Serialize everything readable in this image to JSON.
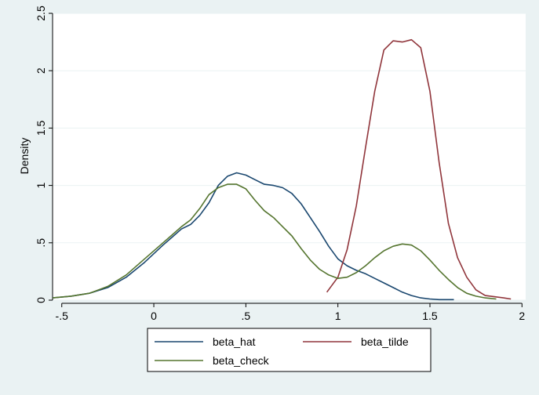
{
  "chart_data": {
    "type": "line",
    "title": "",
    "xlabel": "",
    "ylabel": "Density",
    "xlim": [
      -0.55,
      2.02
    ],
    "ylim": [
      0,
      2.5
    ],
    "x_ticks": [
      -0.5,
      0,
      0.5,
      1,
      1.5,
      2
    ],
    "x_tick_labels": [
      "-.5",
      "0",
      ".5",
      "1",
      "1.5",
      "2"
    ],
    "y_ticks": [
      0,
      0.5,
      1,
      1.5,
      2,
      2.5
    ],
    "y_tick_labels": [
      "0",
      ".5",
      "1",
      "1.5",
      "2",
      "2.5"
    ],
    "grid": true,
    "legend_position": "bottom",
    "series": [
      {
        "name": "beta_hat",
        "color": "#1a476f",
        "points": [
          [
            -0.55,
            0.02
          ],
          [
            -0.45,
            0.035
          ],
          [
            -0.35,
            0.06
          ],
          [
            -0.25,
            0.11
          ],
          [
            -0.15,
            0.2
          ],
          [
            -0.05,
            0.33
          ],
          [
            0.05,
            0.48
          ],
          [
            0.1,
            0.55
          ],
          [
            0.15,
            0.62
          ],
          [
            0.2,
            0.66
          ],
          [
            0.25,
            0.74
          ],
          [
            0.3,
            0.85
          ],
          [
            0.35,
            1.0
          ],
          [
            0.4,
            1.08
          ],
          [
            0.45,
            1.11
          ],
          [
            0.5,
            1.09
          ],
          [
            0.55,
            1.05
          ],
          [
            0.6,
            1.01
          ],
          [
            0.65,
            1.0
          ],
          [
            0.7,
            0.98
          ],
          [
            0.75,
            0.93
          ],
          [
            0.8,
            0.84
          ],
          [
            0.85,
            0.72
          ],
          [
            0.9,
            0.6
          ],
          [
            0.95,
            0.47
          ],
          [
            1.0,
            0.36
          ],
          [
            1.05,
            0.3
          ],
          [
            1.1,
            0.26
          ],
          [
            1.15,
            0.23
          ],
          [
            1.2,
            0.19
          ],
          [
            1.25,
            0.15
          ],
          [
            1.3,
            0.11
          ],
          [
            1.35,
            0.07
          ],
          [
            1.4,
            0.04
          ],
          [
            1.45,
            0.02
          ],
          [
            1.5,
            0.01
          ],
          [
            1.55,
            0.005
          ],
          [
            1.63,
            0.005
          ]
        ]
      },
      {
        "name": "beta_tilde",
        "color": "#90353b",
        "points": [
          [
            0.94,
            0.07
          ],
          [
            1.0,
            0.2
          ],
          [
            1.05,
            0.44
          ],
          [
            1.1,
            0.82
          ],
          [
            1.15,
            1.33
          ],
          [
            1.2,
            1.82
          ],
          [
            1.25,
            2.18
          ],
          [
            1.3,
            2.26
          ],
          [
            1.35,
            2.25
          ],
          [
            1.4,
            2.27
          ],
          [
            1.45,
            2.2
          ],
          [
            1.5,
            1.82
          ],
          [
            1.55,
            1.2
          ],
          [
            1.6,
            0.67
          ],
          [
            1.65,
            0.37
          ],
          [
            1.7,
            0.2
          ],
          [
            1.75,
            0.09
          ],
          [
            1.8,
            0.04
          ],
          [
            1.85,
            0.03
          ],
          [
            1.9,
            0.02
          ],
          [
            1.94,
            0.01
          ]
        ]
      },
      {
        "name": "beta_check",
        "color": "#55752f",
        "points": [
          [
            -0.55,
            0.02
          ],
          [
            -0.45,
            0.035
          ],
          [
            -0.35,
            0.06
          ],
          [
            -0.25,
            0.12
          ],
          [
            -0.15,
            0.22
          ],
          [
            -0.05,
            0.36
          ],
          [
            0.05,
            0.5
          ],
          [
            0.1,
            0.57
          ],
          [
            0.15,
            0.64
          ],
          [
            0.2,
            0.7
          ],
          [
            0.25,
            0.8
          ],
          [
            0.3,
            0.92
          ],
          [
            0.35,
            0.98
          ],
          [
            0.4,
            1.01
          ],
          [
            0.45,
            1.01
          ],
          [
            0.5,
            0.97
          ],
          [
            0.55,
            0.87
          ],
          [
            0.6,
            0.78
          ],
          [
            0.65,
            0.72
          ],
          [
            0.7,
            0.64
          ],
          [
            0.75,
            0.56
          ],
          [
            0.8,
            0.45
          ],
          [
            0.85,
            0.35
          ],
          [
            0.9,
            0.27
          ],
          [
            0.95,
            0.22
          ],
          [
            1.0,
            0.19
          ],
          [
            1.05,
            0.2
          ],
          [
            1.1,
            0.24
          ],
          [
            1.15,
            0.3
          ],
          [
            1.2,
            0.37
          ],
          [
            1.25,
            0.43
          ],
          [
            1.3,
            0.47
          ],
          [
            1.35,
            0.49
          ],
          [
            1.4,
            0.48
          ],
          [
            1.45,
            0.43
          ],
          [
            1.5,
            0.35
          ],
          [
            1.55,
            0.26
          ],
          [
            1.6,
            0.18
          ],
          [
            1.65,
            0.11
          ],
          [
            1.7,
            0.06
          ],
          [
            1.75,
            0.035
          ],
          [
            1.8,
            0.02
          ],
          [
            1.86,
            0.01
          ]
        ]
      }
    ]
  }
}
